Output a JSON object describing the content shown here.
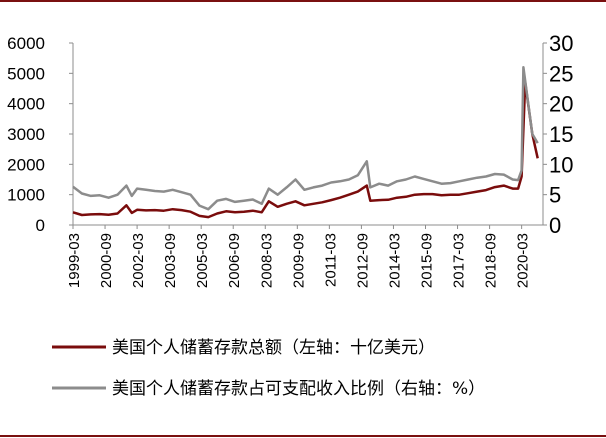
{
  "chart_data": {
    "type": "line",
    "title": "",
    "xlabel": "",
    "ylabel_left": "",
    "ylabel_right": "",
    "y_left": {
      "min": 0,
      "max": 6000,
      "ticks": [
        "0",
        "1000",
        "2000",
        "3000",
        "4000",
        "5000",
        "6000"
      ]
    },
    "y_right": {
      "min": 0,
      "max": 30,
      "ticks": [
        "0",
        "5",
        "10",
        "15",
        "20",
        "25",
        "30"
      ]
    },
    "x_range": [
      "1999-03",
      "2021-03"
    ],
    "x_ticks": [
      "1999-03",
      "2000-09",
      "2002-03",
      "2003-09",
      "2005-03",
      "2006-09",
      "2008-03",
      "2009-09",
      "2011-03",
      "2012-09",
      "2014-03",
      "2015-09",
      "2017-03",
      "2018-09",
      "2020-03"
    ],
    "legend_position": "bottom",
    "grid": false,
    "series": [
      {
        "name": "美国个人储蓄存款总额（左轴：十亿美元）",
        "axis": "left",
        "color": "#7a0c0c",
        "points": [
          [
            "1999-03",
            420
          ],
          [
            "1999-08",
            330
          ],
          [
            "2000-01",
            350
          ],
          [
            "2000-06",
            360
          ],
          [
            "2000-11",
            340
          ],
          [
            "2001-04",
            380
          ],
          [
            "2001-09",
            650
          ],
          [
            "2001-12",
            400
          ],
          [
            "2002-03",
            500
          ],
          [
            "2002-08",
            480
          ],
          [
            "2003-01",
            490
          ],
          [
            "2003-06",
            470
          ],
          [
            "2003-11",
            520
          ],
          [
            "2004-04",
            490
          ],
          [
            "2004-09",
            440
          ],
          [
            "2005-02",
            300
          ],
          [
            "2005-07",
            260
          ],
          [
            "2005-12",
            380
          ],
          [
            "2006-05",
            450
          ],
          [
            "2006-10",
            420
          ],
          [
            "2007-03",
            440
          ],
          [
            "2007-08",
            470
          ],
          [
            "2008-01",
            420
          ],
          [
            "2008-05",
            780
          ],
          [
            "2008-10",
            600
          ],
          [
            "2009-03",
            700
          ],
          [
            "2009-08",
            780
          ],
          [
            "2010-01",
            650
          ],
          [
            "2010-06",
            700
          ],
          [
            "2010-11",
            750
          ],
          [
            "2011-04",
            820
          ],
          [
            "2011-09",
            900
          ],
          [
            "2012-02",
            1000
          ],
          [
            "2012-07",
            1100
          ],
          [
            "2012-12",
            1300
          ],
          [
            "2013-02",
            800
          ],
          [
            "2013-07",
            820
          ],
          [
            "2013-12",
            830
          ],
          [
            "2014-05",
            900
          ],
          [
            "2014-10",
            930
          ],
          [
            "2015-03",
            1000
          ],
          [
            "2015-08",
            1020
          ],
          [
            "2016-01",
            1020
          ],
          [
            "2016-06",
            980
          ],
          [
            "2016-11",
            1000
          ],
          [
            "2017-04",
            1000
          ],
          [
            "2017-09",
            1050
          ],
          [
            "2018-02",
            1100
          ],
          [
            "2018-07",
            1150
          ],
          [
            "2018-12",
            1250
          ],
          [
            "2019-05",
            1300
          ],
          [
            "2019-10",
            1200
          ],
          [
            "2020-01",
            1200
          ],
          [
            "2020-03",
            1600
          ],
          [
            "2020-05",
            4700
          ],
          [
            "2020-09",
            3000
          ],
          [
            "2020-12",
            2200
          ]
        ]
      },
      {
        "name": "美国个人储蓄存款占可支配收入比例（右轴：%）",
        "axis": "right",
        "color": "#8c8c8c",
        "points": [
          [
            "1999-03",
            6.3
          ],
          [
            "1999-08",
            5.2
          ],
          [
            "2000-01",
            4.8
          ],
          [
            "2000-06",
            4.9
          ],
          [
            "2000-11",
            4.5
          ],
          [
            "2001-04",
            5.0
          ],
          [
            "2001-09",
            6.5
          ],
          [
            "2001-12",
            4.8
          ],
          [
            "2002-03",
            6.0
          ],
          [
            "2002-08",
            5.8
          ],
          [
            "2003-01",
            5.6
          ],
          [
            "2003-06",
            5.5
          ],
          [
            "2003-11",
            5.8
          ],
          [
            "2004-04",
            5.4
          ],
          [
            "2004-09",
            5.0
          ],
          [
            "2005-02",
            3.2
          ],
          [
            "2005-07",
            2.6
          ],
          [
            "2005-12",
            4.0
          ],
          [
            "2006-05",
            4.3
          ],
          [
            "2006-10",
            3.8
          ],
          [
            "2007-03",
            4.0
          ],
          [
            "2007-08",
            4.2
          ],
          [
            "2008-01",
            3.5
          ],
          [
            "2008-05",
            6.0
          ],
          [
            "2008-10",
            5.0
          ],
          [
            "2009-03",
            6.2
          ],
          [
            "2009-08",
            7.5
          ],
          [
            "2010-01",
            5.8
          ],
          [
            "2010-06",
            6.2
          ],
          [
            "2010-11",
            6.5
          ],
          [
            "2011-04",
            7.0
          ],
          [
            "2011-09",
            7.2
          ],
          [
            "2012-02",
            7.5
          ],
          [
            "2012-07",
            8.2
          ],
          [
            "2012-12",
            10.5
          ],
          [
            "2013-02",
            6.2
          ],
          [
            "2013-07",
            6.8
          ],
          [
            "2013-12",
            6.5
          ],
          [
            "2014-05",
            7.2
          ],
          [
            "2014-10",
            7.5
          ],
          [
            "2015-03",
            8.0
          ],
          [
            "2015-08",
            7.6
          ],
          [
            "2016-01",
            7.2
          ],
          [
            "2016-06",
            6.8
          ],
          [
            "2016-11",
            6.9
          ],
          [
            "2017-04",
            7.2
          ],
          [
            "2017-09",
            7.5
          ],
          [
            "2018-02",
            7.8
          ],
          [
            "2018-07",
            8.0
          ],
          [
            "2018-12",
            8.4
          ],
          [
            "2019-05",
            8.3
          ],
          [
            "2019-10",
            7.5
          ],
          [
            "2020-01",
            7.4
          ],
          [
            "2020-03",
            9.0
          ],
          [
            "2020-04",
            26.0
          ],
          [
            "2020-09",
            15.0
          ],
          [
            "2020-12",
            13.5
          ]
        ]
      }
    ]
  }
}
